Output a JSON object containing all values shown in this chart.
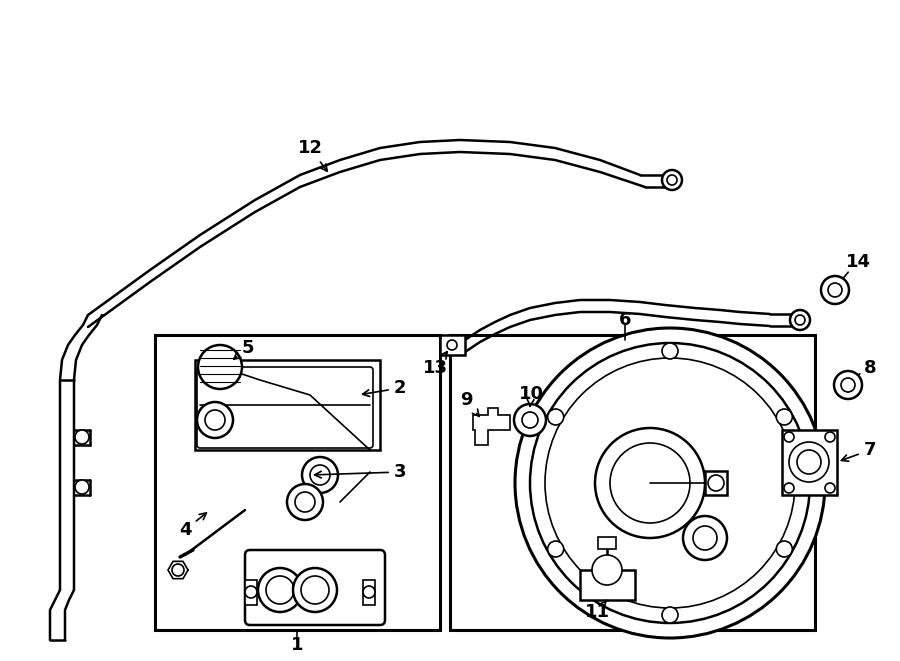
{
  "background_color": "#ffffff",
  "line_color": "#000000",
  "lw_thin": 1.2,
  "lw_med": 1.8,
  "lw_thick": 2.2
}
